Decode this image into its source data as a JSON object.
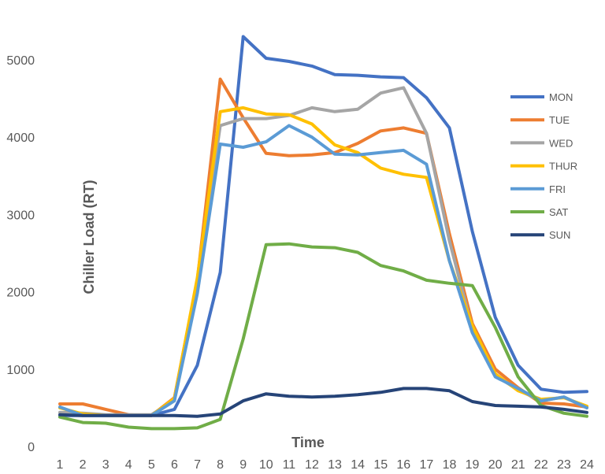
{
  "chart_data": {
    "type": "line",
    "xlabel": "Time",
    "ylabel": "Chiller Load  (RT)",
    "x": [
      1,
      2,
      3,
      4,
      5,
      6,
      7,
      8,
      9,
      10,
      11,
      12,
      13,
      14,
      15,
      16,
      17,
      18,
      19,
      20,
      21,
      22,
      23,
      24
    ],
    "y_ticks": [
      0,
      1000,
      2000,
      3000,
      4000,
      5000
    ],
    "ylim": [
      0,
      5500
    ],
    "grid": false,
    "legend_position": "right",
    "series": [
      {
        "name": "MON",
        "color": "#4472C4",
        "values": [
          400,
          400,
          400,
          400,
          400,
          480,
          1050,
          2250,
          5300,
          5020,
          4980,
          4920,
          4810,
          4800,
          4780,
          4770,
          4510,
          4120,
          2780,
          1670,
          1050,
          740,
          700,
          710
        ]
      },
      {
        "name": "TUE",
        "color": "#ED7D31",
        "values": [
          550,
          550,
          480,
          410,
          400,
          630,
          2150,
          4750,
          4250,
          3790,
          3760,
          3770,
          3800,
          3920,
          4080,
          4120,
          4050,
          2750,
          1590,
          1000,
          760,
          560,
          550,
          510
        ]
      },
      {
        "name": "WED",
        "color": "#A5A5A5",
        "values": [
          440,
          430,
          410,
          410,
          410,
          600,
          2100,
          4150,
          4240,
          4240,
          4280,
          4380,
          4330,
          4360,
          4570,
          4640,
          4050,
          2660,
          1520,
          920,
          730,
          590,
          640,
          500
        ]
      },
      {
        "name": "THUR",
        "color": "#FFC000",
        "values": [
          500,
          420,
          400,
          400,
          400,
          620,
          2180,
          4330,
          4380,
          4300,
          4290,
          4170,
          3900,
          3800,
          3600,
          3520,
          3480,
          2400,
          1560,
          940,
          720,
          610,
          630,
          520
        ]
      },
      {
        "name": "FRI",
        "color": "#5B9BD5",
        "values": [
          510,
          400,
          400,
          400,
          400,
          590,
          1980,
          3910,
          3870,
          3940,
          4150,
          4000,
          3780,
          3770,
          3800,
          3830,
          3650,
          2400,
          1470,
          900,
          750,
          590,
          640,
          500
        ]
      },
      {
        "name": "SAT",
        "color": "#70AD47",
        "values": [
          380,
          310,
          300,
          250,
          230,
          230,
          240,
          350,
          1390,
          2610,
          2620,
          2580,
          2570,
          2510,
          2340,
          2270,
          2150,
          2110,
          2080,
          1540,
          900,
          530,
          430,
          390
        ]
      },
      {
        "name": "SUN",
        "color": "#264478",
        "values": [
          410,
          400,
          400,
          400,
          400,
          400,
          390,
          420,
          590,
          680,
          650,
          640,
          650,
          670,
          700,
          750,
          750,
          720,
          580,
          530,
          520,
          510,
          480,
          440
        ]
      }
    ]
  }
}
